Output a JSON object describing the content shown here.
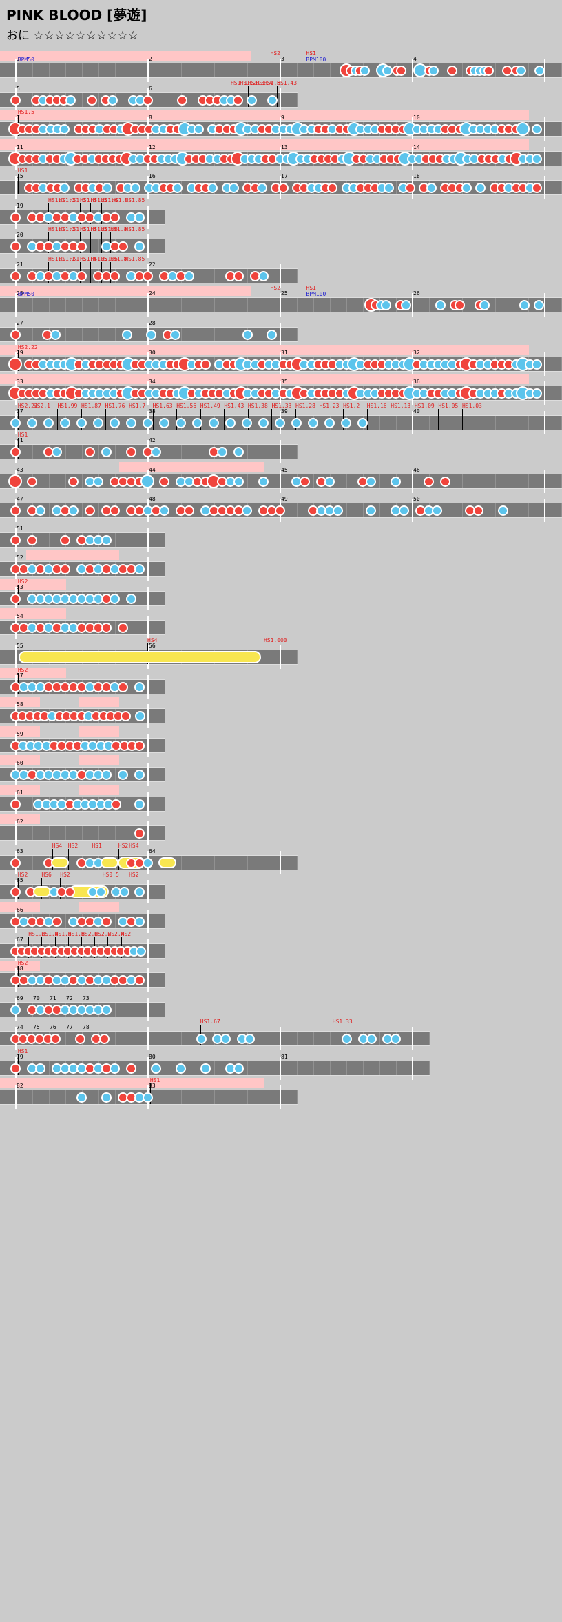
{
  "song": {
    "title": "PINK BLOOD [夢遊]",
    "difficulty": "おに ☆☆☆☆☆☆☆☆☆☆"
  },
  "colors": {
    "background": "#cbcbcb",
    "lane": "#7a7a7a",
    "don": "#f0443c",
    "ka": "#5cc4ec",
    "roll": "#f8e650",
    "go_go_time": "#ffc6c6",
    "scroll_label": "#e02020",
    "bpm_label": "#2020d0"
  },
  "icons": {
    "don_note": "red-don-circle",
    "ka_note": "blue-ka-circle",
    "drumroll": "yellow-roll-bar"
  },
  "lanes": [
    {
      "n": 1,
      "bars": 4,
      "measures": [
        "1",
        "2",
        "3",
        "4"
      ],
      "gogo": [
        [
          0,
          1.9
        ]
      ],
      "notes": "........................................................................DDkDk...KK.DD...K.DK...D...DKKKD...D.DK...K",
      "scroll": [
        {
          "x": 1.93,
          "t": "HS2"
        },
        {
          "x": 2.2,
          "t": "HS1"
        }
      ],
      "bpm": [
        {
          "x": 0.02,
          "t": "BPM50"
        },
        {
          "x": 2.2,
          "t": "BPM100"
        }
      ]
    },
    {
      "n": 2,
      "bars": 2,
      "measures": [
        "5",
        "6"
      ],
      "gogo": [],
      "notes": "D..DKDDDK..D.DK..KKD....D..DDDKKD.K..K",
      "scroll": [
        {
          "x": 1.63,
          "t": "HS1.1"
        },
        {
          "x": 1.7,
          "t": "HS1.2"
        },
        {
          "x": 1.76,
          "t": "HS1.3"
        },
        {
          "x": 1.82,
          "t": "HS1.4"
        },
        {
          "x": 1.88,
          "t": "HS1.5"
        },
        {
          "x": 1.98,
          "t": "HS1.43"
        }
      ],
      "bpm": []
    },
    {
      "n": 3,
      "bars": 4,
      "measures": [
        "7",
        "8",
        "9",
        "10"
      ],
      "gogo": [
        [
          0,
          4
        ]
      ],
      "notes": "DDDDKKKK.DDDKDDKDDDDKKDDKKK.KDDDKKKDDKKKKKKDDKDDKKKKDDDDKKKKKDDDKKKKKDDDK.K",
      "scroll": [
        {
          "x": 0.02,
          "t": "HS1.5"
        }
      ],
      "bpm": []
    },
    {
      "n": 4,
      "bars": 4,
      "measures": [
        "11",
        "12",
        "13",
        "14"
      ],
      "gogo": [
        [
          0,
          4
        ]
      ],
      "notes": "DDDDKDDKKDDKDDDDDKKDDKKKKDDDKKDDDKKKDDKKKKKDDDDKKDDKKDDDKKKDDDKKKKKDDDKDDKKK",
      "scroll": [],
      "bpm": []
    },
    {
      "n": 5,
      "bars": 4,
      "measures": [
        "15",
        "16",
        "17",
        "18"
      ],
      "gogo": [],
      "notes": "..DDKDDK.DDKDK.DKK.KKDDK.KDDK.KK.DDK.DD.DDKKDD.KKDDDKK.KD.DK.DDDK.K.DDKDDKD",
      "scroll": [
        {
          "x": 0.02,
          "t": "HS1"
        }
      ],
      "bpm": []
    },
    {
      "n": 6,
      "bars": 1,
      "measures": [
        "19"
      ],
      "gogo": [],
      "notes": "D.DDKDDKDDKDD.KK",
      "scroll": [
        {
          "x": 0.25,
          "t": "HS1.1"
        },
        {
          "x": 0.33,
          "t": "HS1.2"
        },
        {
          "x": 0.41,
          "t": "HS1.3"
        },
        {
          "x": 0.49,
          "t": "HS1.4"
        },
        {
          "x": 0.57,
          "t": "HS1.5"
        },
        {
          "x": 0.65,
          "t": "HS1.6"
        },
        {
          "x": 0.73,
          "t": "HS1.7"
        },
        {
          "x": 0.83,
          "t": "HS1.85"
        }
      ],
      "bpm": []
    },
    {
      "n": 7,
      "bars": 1,
      "measures": [
        "20"
      ],
      "gogo": [],
      "notes": "D.KDDKDDD..KDD.K",
      "scroll": [
        {
          "x": 0.25,
          "t": "HS1.1"
        },
        {
          "x": 0.33,
          "t": "HS1.2"
        },
        {
          "x": 0.41,
          "t": "HS1.3"
        },
        {
          "x": 0.49,
          "t": "HS1.4"
        },
        {
          "x": 0.57,
          "t": "HS1.5"
        },
        {
          "x": 0.65,
          "t": "HS1.6"
        },
        {
          "x": 0.72,
          "t": "HS1.8"
        },
        {
          "x": 0.83,
          "t": "HS1.85"
        }
      ],
      "bpm": []
    },
    {
      "n": 8,
      "bars": 2,
      "measures": [
        "21",
        "22"
      ],
      "gogo": [],
      "notes": "D.DKDKDKD.DDD.KDD.DKDK....DD.DK",
      "scroll": [
        {
          "x": 0.25,
          "t": "HS1.1"
        },
        {
          "x": 0.33,
          "t": "HS1.2"
        },
        {
          "x": 0.41,
          "t": "HS1.3"
        },
        {
          "x": 0.49,
          "t": "HS1.4"
        },
        {
          "x": 0.57,
          "t": "HS1.5"
        },
        {
          "x": 0.65,
          "t": "HS1.6"
        },
        {
          "x": 0.72,
          "t": "HS1.8"
        },
        {
          "x": 0.83,
          "t": "HS1.85"
        }
      ],
      "bpm": []
    },
    {
      "n": 9,
      "bars": 4,
      "measures": [
        "23",
        "24",
        "25",
        "26"
      ],
      "gogo": [
        [
          0,
          1.9
        ]
      ],
      "notes": "........................................................................DDKK..DK......K..DD...DK.......K..K",
      "scroll": [
        {
          "x": 1.93,
          "t": "HS2"
        },
        {
          "x": 2.2,
          "t": "HS1"
        }
      ],
      "bpm": [
        {
          "x": 0.02,
          "t": "BPM50"
        },
        {
          "x": 2.2,
          "t": "BPM100"
        }
      ]
    },
    {
      "n": 10,
      "bars": 2,
      "measures": [
        "27",
        "28"
      ],
      "gogo": [],
      "notes": "D...DK........K..K.DK........K..K",
      "scroll": [],
      "bpm": []
    },
    {
      "n": 11,
      "bars": 4,
      "measures": [
        "29",
        "30",
        "31",
        "32"
      ],
      "gogo": [
        [
          0,
          4
        ]
      ],
      "notes": "D.DDKKKKKDKDDDDDKDDKKKDDDKDD.KDDKKKDKKDDDKKDDDKKKKDDDKKKKDKKKKKDDDKKDDDKKKK",
      "scroll": [
        {
          "x": 0.02,
          "t": "HS2.22"
        }
      ],
      "bpm": []
    },
    {
      "n": 12,
      "bars": 4,
      "measures": [
        "33",
        "34",
        "35",
        "36"
      ],
      "gogo": [
        [
          0,
          4
        ]
      ],
      "notes": "DDDDDKDDDDKKKKKDKDDKKDDKKDKDDDKDDKKDDKDKDDKDDDDKDKKKDDDDKKKDDKKDDDKKKDKKKKK",
      "scroll": [],
      "bpm": []
    },
    {
      "n": 13,
      "bars": 4,
      "measures": [
        "37",
        "38",
        "39",
        "40"
      ],
      "gogo": [],
      "notes": "K.K.K.K.K.K.K.K.K.K.K.K.K.K.K.K.K.K.K.K.K.K.",
      "scroll": [
        {
          "x": 0.02,
          "t": "HS2.22"
        },
        {
          "x": 0.14,
          "t": "HS2.1"
        },
        {
          "x": 0.32,
          "t": "HS1.99"
        },
        {
          "x": 0.5,
          "t": "HS1.87"
        },
        {
          "x": 0.68,
          "t": "HS1.76"
        },
        {
          "x": 0.86,
          "t": "HS1.7"
        },
        {
          "x": 1.04,
          "t": "HS1.63"
        },
        {
          "x": 1.22,
          "t": "HS1.56"
        },
        {
          "x": 1.4,
          "t": "HS1.49"
        },
        {
          "x": 1.58,
          "t": "HS1.43"
        },
        {
          "x": 1.76,
          "t": "HS1.38"
        },
        {
          "x": 1.94,
          "t": "HS1.33"
        },
        {
          "x": 2.12,
          "t": "HS1.28"
        },
        {
          "x": 2.3,
          "t": "HS1.23"
        },
        {
          "x": 2.48,
          "t": "HS1.2"
        },
        {
          "x": 2.66,
          "t": "HS1.16"
        },
        {
          "x": 2.84,
          "t": "HS1.13"
        },
        {
          "x": 3.02,
          "t": "HS1.09"
        },
        {
          "x": 3.2,
          "t": "HS1.05"
        },
        {
          "x": 3.38,
          "t": "HS1.03"
        }
      ],
      "bpm": []
    },
    {
      "n": 14,
      "bars": 2,
      "measures": [
        "41",
        "42"
      ],
      "gogo": [],
      "notes": "D...DK...D.K..D.DK......DK.K",
      "scroll": [
        {
          "x": 0.02,
          "t": "HS1"
        }
      ],
      "bpm": []
    },
    {
      "n": 15,
      "bars": 4,
      "measures": [
        "43",
        "44",
        "45",
        "46"
      ],
      "gogo": [
        [
          0.9,
          2
        ]
      ],
      "notes": "D.D....D.KK.DDDDK.D.KKDDDDKK..K...KD.DK...DK..K...D.D",
      "scroll": [],
      "bpm": []
    },
    {
      "n": 16,
      "bars": 4,
      "measures": [
        "47",
        "48",
        "49",
        "50"
      ],
      "gogo": [],
      "notes": "D.DK.KDK.D.DD.DDKDK.DD.KDDDDK.DDD...DKKK...K..KK.DKK...DD..K",
      "scroll": [],
      "bpm": []
    },
    {
      "n": 17,
      "bars": 1,
      "measures": [
        "51"
      ],
      "gogo": [],
      "notes": "D.D...D.DKKK",
      "scroll": [],
      "bpm": []
    },
    {
      "n": 18,
      "bars": 1,
      "measures": [
        "52"
      ],
      "gogo": [
        [
          0.2,
          0.9
        ]
      ],
      "notes": "DDKDKDD.KDKDKDDK",
      "scroll": [],
      "bpm": []
    },
    {
      "n": 19,
      "bars": 1,
      "measures": [
        "53"
      ],
      "gogo": [
        [
          0,
          0.5
        ]
      ],
      "notes": "D.KKKKKKKKKDK.K",
      "scroll": [
        {
          "x": 0.02,
          "t": "HS2"
        }
      ],
      "bpm": []
    },
    {
      "n": 20,
      "bars": 1,
      "measures": [
        "54"
      ],
      "gogo": [
        [
          0,
          0.5
        ]
      ],
      "notes": "DDKDKDKKDDDD.D",
      "scroll": [],
      "bpm": []
    },
    {
      "n": 21,
      "bars": 2,
      "measures": [
        "55",
        "56"
      ],
      "gogo": [],
      "notes": "",
      "roll": [
        0.07,
        1.9
      ],
      "scroll": [
        {
          "x": 1,
          "t": "HS4"
        },
        {
          "x": 1.88,
          "t": "HS1.000"
        }
      ],
      "bpm": []
    },
    {
      "n": 22,
      "bars": 1,
      "measures": [
        "57"
      ],
      "gogo": [
        [
          0,
          0.5
        ]
      ],
      "notes": "DKKKDDDDDKDDKD.K",
      "scroll": [
        {
          "x": 0.02,
          "t": "HS2"
        }
      ],
      "bpm": []
    },
    {
      "n": 23,
      "bars": 1,
      "measures": [
        "58"
      ],
      "gogo": [
        [
          0,
          0.3
        ],
        [
          0.6,
          0.9
        ]
      ],
      "notes": "DDDDDKDDDDKDDDDD.K",
      "scroll": [],
      "bpm": []
    },
    {
      "n": 24,
      "bars": 1,
      "measures": [
        "59"
      ],
      "gogo": [
        [
          0,
          0.3
        ],
        [
          0.6,
          0.9
        ]
      ],
      "notes": "DKKKKDDDDKKKKDDDD",
      "scroll": [],
      "bpm": []
    },
    {
      "n": 25,
      "bars": 1,
      "measures": [
        "60"
      ],
      "gogo": [
        [
          0,
          0.3
        ],
        [
          0.6,
          0.9
        ]
      ],
      "notes": "KKDKKKKKDKKK.K.K",
      "scroll": [],
      "bpm": []
    },
    {
      "n": 26,
      "bars": 1,
      "measures": [
        "61"
      ],
      "gogo": [
        [
          0,
          0.3
        ],
        [
          0.6,
          0.9
        ]
      ],
      "notes": "D..KKKKDKKKKKD..K",
      "scroll": [],
      "bpm": []
    },
    {
      "n": 27,
      "bars": 1,
      "measures": [
        "62"
      ],
      "gogo": [
        [
          0,
          0.3
        ]
      ],
      "notes": "...............D",
      "scroll": [],
      "bpm": []
    },
    {
      "n": 28,
      "bars": 2,
      "measures": [
        "63",
        "64"
      ],
      "gogo": [],
      "notes": "D...DY..DKKY..DDK.Y",
      "scroll": [
        {
          "x": 0.28,
          "t": "HS4"
        },
        {
          "x": 0.4,
          "t": "HS2"
        },
        {
          "x": 0.58,
          "t": "HS1"
        },
        {
          "x": 0.78,
          "t": "HS2"
        },
        {
          "x": 0.86,
          "t": "HS4"
        }
      ],
      "bpm": [],
      "roll": [
        0.82,
        1.02
      ]
    },
    {
      "n": 29,
      "bars": 1,
      "measures": [
        "65"
      ],
      "gogo": [],
      "notes": "D.DY.KDD..KK.KK.K",
      "scroll": [
        {
          "x": 0.02,
          "t": "HS2"
        },
        {
          "x": 0.2,
          "t": "HS6"
        },
        {
          "x": 0.34,
          "t": "HS2"
        },
        {
          "x": 0.66,
          "t": "HS0.5"
        },
        {
          "x": 0.86,
          "t": "HS2"
        }
      ],
      "bpm": [],
      "roll": [
        0.45,
        0.75
      ]
    },
    {
      "n": 30,
      "bars": 1,
      "measures": [
        "66"
      ],
      "gogo": [
        [
          0,
          0.3
        ],
        [
          0.6,
          0.9
        ]
      ],
      "notes": "DKDDKD.KDDKD.KDK",
      "scroll": [],
      "bpm": []
    },
    {
      "n": 31,
      "bars": 1,
      "measures": [
        "67"
      ],
      "gogo": [],
      "notes": "DDDDDDDDDDDDDDDDDDKK",
      "scroll": [
        {
          "x": 0.1,
          "t": "HS1.2"
        },
        {
          "x": 0.2,
          "t": "HS1.4"
        },
        {
          "x": 0.3,
          "t": "HS1.6"
        },
        {
          "x": 0.4,
          "t": "HS1.8"
        },
        {
          "x": 0.5,
          "t": "HS2.0"
        },
        {
          "x": 0.6,
          "t": "HS2.2"
        },
        {
          "x": 0.7,
          "t": "HS2.4"
        },
        {
          "x": 0.8,
          "t": "HS2"
        }
      ],
      "bpm": []
    },
    {
      "n": 32,
      "bars": 1,
      "measures": [
        "68"
      ],
      "gogo": [
        [
          0,
          0.3
        ]
      ],
      "notes": "DDKKDKKDKDKKDDKD",
      "scroll": [
        {
          "x": 0.02,
          "t": "HS2"
        }
      ],
      "bpm": []
    },
    {
      "n": 33,
      "bars": 1,
      "measures": [
        "69",
        "70",
        "71",
        "72",
        "73"
      ],
      "gogo": [],
      "notes": "K.DKDDKKKKKK",
      "scroll": [],
      "bpm": []
    },
    {
      "n": 34,
      "bars": 3,
      "measures": [
        "74",
        "75",
        "76",
        "77",
        "78"
      ],
      "gogo": [],
      "notes": "DDDDDD..D.DD...........K.KK.KK...........K.KK.KK.",
      "scroll": [
        {
          "x": 1.4,
          "t": "HS1.67"
        },
        {
          "x": 2.4,
          "t": "HS1.33"
        }
      ],
      "bpm": []
    },
    {
      "n": 35,
      "bars": 3,
      "measures": [
        "79",
        "80",
        "81"
      ],
      "gogo": [],
      "notes": "D.KK.KKKKDKDK.D..K..K..K..KK",
      "scroll": [
        {
          "x": 0.02,
          "t": "HS1"
        }
      ],
      "bpm": []
    },
    {
      "n": 36,
      "bars": 2,
      "measures": [
        "82",
        "83"
      ],
      "gogo": [
        [
          0,
          2
        ]
      ],
      "notes": "........K..K.DDKK",
      "scroll": [
        {
          "x": 1.02,
          "t": "HS1"
        }
      ],
      "bpm": []
    }
  ]
}
